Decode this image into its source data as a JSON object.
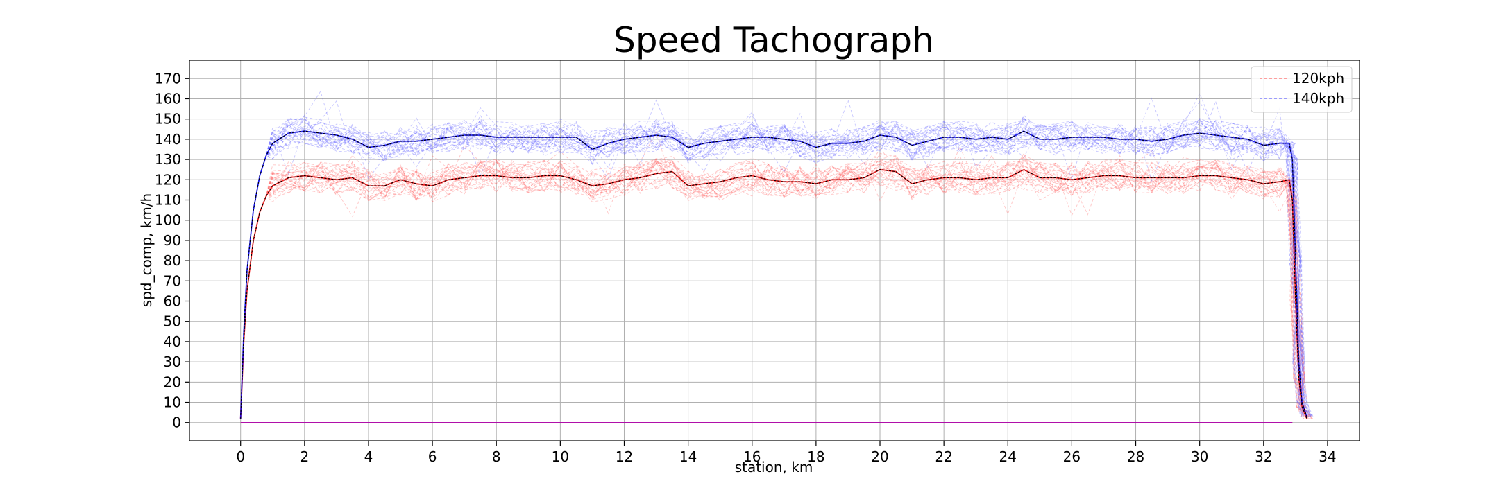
{
  "chart_data": {
    "type": "line",
    "title": "Speed Tachograph",
    "xlabel": "station, km",
    "ylabel": "spd_comp, km/h",
    "xlim": [
      -1.6,
      35.0
    ],
    "ylim": [
      -9,
      179
    ],
    "x_ticks": [
      0,
      2,
      4,
      6,
      8,
      10,
      12,
      14,
      16,
      18,
      20,
      22,
      24,
      26,
      28,
      30,
      32,
      34
    ],
    "y_ticks": [
      0,
      10,
      20,
      30,
      40,
      50,
      60,
      70,
      80,
      90,
      100,
      110,
      120,
      130,
      140,
      150,
      160,
      170
    ],
    "grid": true,
    "legend_position": "top-right",
    "legend": [
      {
        "name": "120kph",
        "color": "#ff8080",
        "style": "dashed"
      },
      {
        "name": "140kph",
        "color": "#8080ff",
        "style": "dashed"
      }
    ],
    "series": [
      {
        "name": "120kph",
        "color": "#ff0000",
        "style": "dashed",
        "x": [
          0,
          0.1,
          0.2,
          0.4,
          0.6,
          0.8,
          1,
          1.5,
          2,
          2.5,
          3,
          3.5,
          4,
          4.5,
          5,
          5.5,
          6,
          6.5,
          7,
          7.5,
          8,
          8.5,
          9,
          9.5,
          10,
          10.5,
          11,
          11.5,
          12,
          12.5,
          13,
          13.5,
          14,
          14.5,
          15,
          15.5,
          16,
          16.5,
          17,
          17.5,
          18,
          18.5,
          19,
          19.5,
          20,
          20.5,
          21,
          21.5,
          22,
          22.5,
          23,
          23.5,
          24,
          24.5,
          25,
          25.5,
          26,
          26.5,
          27,
          27.5,
          28,
          28.5,
          29,
          29.5,
          30,
          30.5,
          31,
          31.5,
          32,
          32.5,
          32.8,
          32.9,
          33.0,
          33.1,
          33.2,
          33.35
        ],
        "y": [
          2,
          40,
          65,
          90,
          104,
          112,
          117,
          121,
          122,
          121,
          120,
          121,
          117,
          117,
          120,
          118,
          117,
          120,
          121,
          122,
          122,
          121,
          121,
          122,
          122,
          120,
          117,
          118,
          120,
          121,
          123,
          124,
          117,
          118,
          119,
          121,
          122,
          120,
          119,
          119,
          118,
          120,
          120,
          121,
          125,
          124,
          118,
          120,
          121,
          121,
          120,
          121,
          121,
          125,
          121,
          121,
          120,
          121,
          122,
          122,
          121,
          121,
          121,
          121,
          122,
          122,
          121,
          120,
          118,
          119,
          120,
          110,
          60,
          22,
          8,
          2
        ]
      },
      {
        "name": "140kph",
        "color": "#0000ff",
        "style": "dashed",
        "x": [
          0,
          0.1,
          0.2,
          0.4,
          0.6,
          0.8,
          1,
          1.5,
          2,
          2.5,
          3,
          3.5,
          4,
          4.5,
          5,
          5.5,
          6,
          6.5,
          7,
          7.5,
          8,
          8.5,
          9,
          9.5,
          10,
          10.5,
          11,
          11.5,
          12,
          12.5,
          13,
          13.5,
          14,
          14.5,
          15,
          15.5,
          16,
          16.5,
          17,
          17.5,
          18,
          18.5,
          19,
          19.5,
          20,
          20.5,
          21,
          21.5,
          22,
          22.5,
          23,
          23.5,
          24,
          24.5,
          25,
          25.5,
          26,
          26.5,
          27,
          27.5,
          28,
          28.5,
          29,
          29.5,
          30,
          30.5,
          31,
          31.5,
          32,
          32.5,
          32.8,
          32.9,
          33.0,
          33.1,
          33.2,
          33.35
        ],
        "y": [
          2,
          45,
          75,
          105,
          122,
          132,
          138,
          143,
          144,
          143,
          142,
          140,
          136,
          137,
          139,
          139,
          140,
          141,
          142,
          142,
          141,
          141,
          141,
          141,
          141,
          141,
          135,
          138,
          140,
          141,
          142,
          141,
          136,
          138,
          139,
          140,
          141,
          141,
          140,
          139,
          136,
          138,
          138,
          139,
          142,
          141,
          137,
          139,
          141,
          141,
          140,
          141,
          140,
          144,
          140,
          140,
          141,
          141,
          141,
          140,
          140,
          139,
          140,
          142,
          143,
          142,
          141,
          140,
          137,
          138,
          138,
          130,
          80,
          30,
          10,
          3
        ]
      }
    ]
  }
}
